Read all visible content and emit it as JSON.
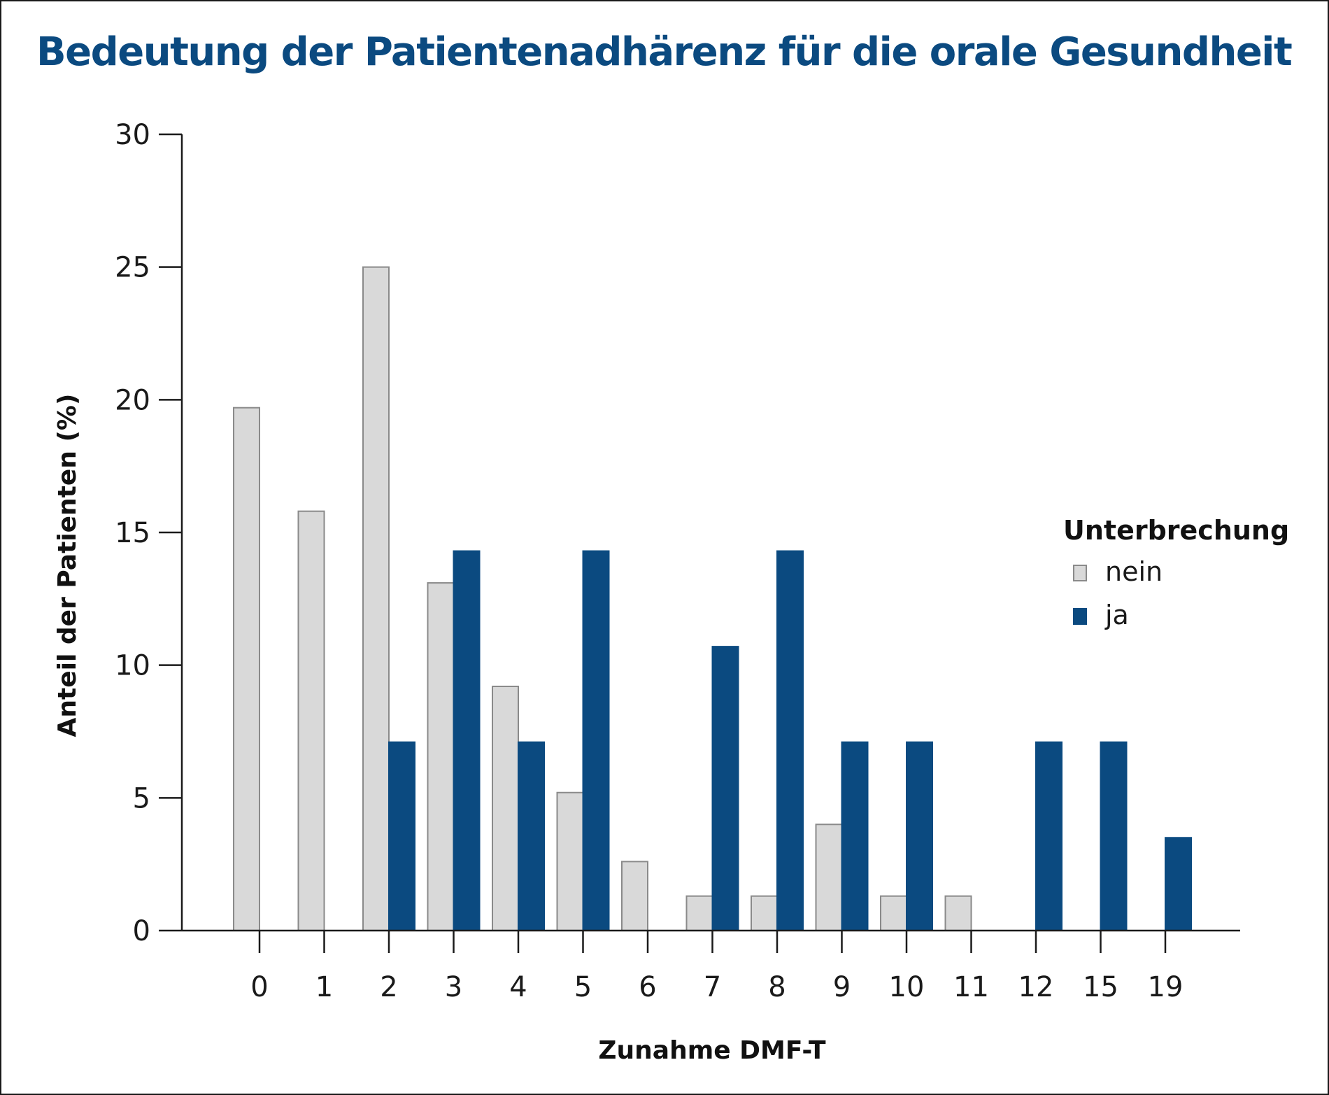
{
  "chart_data": {
    "type": "bar",
    "title": "Bedeutung der Patientenadhärenz für die orale Gesundheit",
    "xlabel": "Zunahme DMF-T",
    "ylabel": "Anteil der Patienten (%)",
    "ylim": [
      0,
      30
    ],
    "yticks": [
      "0",
      "5",
      "10",
      "15",
      "20",
      "25",
      "30"
    ],
    "categories": [
      "0",
      "1",
      "2",
      "3",
      "4",
      "5",
      "6",
      "7",
      "8",
      "9",
      "10",
      "11",
      "12",
      "15",
      "19"
    ],
    "legend": {
      "title": "Unterbrechung",
      "position": "right"
    },
    "series": [
      {
        "name": "nein",
        "color": "#d9d9d9",
        "values": [
          19.7,
          15.8,
          25.0,
          13.1,
          9.2,
          5.2,
          2.6,
          1.3,
          1.3,
          4.0,
          1.3,
          1.3,
          null,
          null,
          null
        ]
      },
      {
        "name": "ja",
        "color": "#0b4a80",
        "values": [
          null,
          null,
          7.1,
          14.3,
          7.1,
          14.3,
          null,
          10.7,
          14.3,
          7.1,
          7.1,
          null,
          7.1,
          7.1,
          3.5
        ]
      }
    ],
    "grid": false
  }
}
